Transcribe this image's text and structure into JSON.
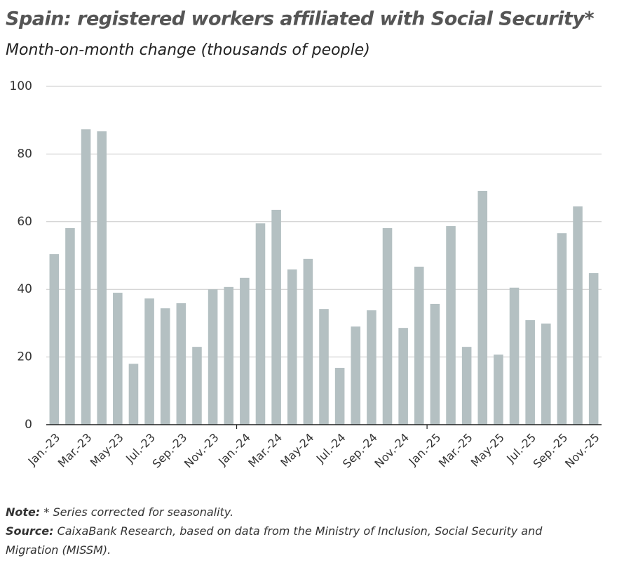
{
  "chart_data": {
    "type": "bar",
    "title": "Spain: registered workers affiliated with Social Security*",
    "subtitle": "Month-on-month change (thousands of people)",
    "categories": [
      "Jan.-23",
      null,
      "Mar.-23",
      null,
      "May-23",
      null,
      "Jul.-23",
      null,
      "Sep.-23",
      null,
      "Nov.-23",
      null,
      "Jan.-24",
      null,
      "Mar.-24",
      null,
      "May-24",
      null,
      "Jul.-24",
      null,
      "Sep.-24",
      null,
      "Nov.-24",
      null,
      "Jan.-25",
      null,
      "Mar.-25",
      null,
      "May-25",
      null,
      "Jul.-25",
      null,
      "Sep.-25",
      null,
      "Nov.-25"
    ],
    "values": [
      50.4,
      58.1,
      87.3,
      86.7,
      39.0,
      18.0,
      37.3,
      34.4,
      35.9,
      23.0,
      40.0,
      40.7,
      43.4,
      59.5,
      63.5,
      45.9,
      49.0,
      34.2,
      16.8,
      29.0,
      33.8,
      58.1,
      28.6,
      46.7,
      35.7,
      58.7,
      23.0,
      69.1,
      20.7,
      40.5,
      30.9,
      29.9,
      56.6,
      64.5,
      44.8
    ],
    "color": "#b4c0c2",
    "ylim": [
      0,
      100
    ],
    "yticks": [
      0,
      20,
      40,
      60,
      80,
      100
    ],
    "grid": true,
    "note_label": "Note:",
    "note": "* Series corrected for seasonality.",
    "source_label": "Source:",
    "source": "CaixaBank Research, based on data from the Ministry of Inclusion, Social Security and Migration (MISSM)."
  }
}
